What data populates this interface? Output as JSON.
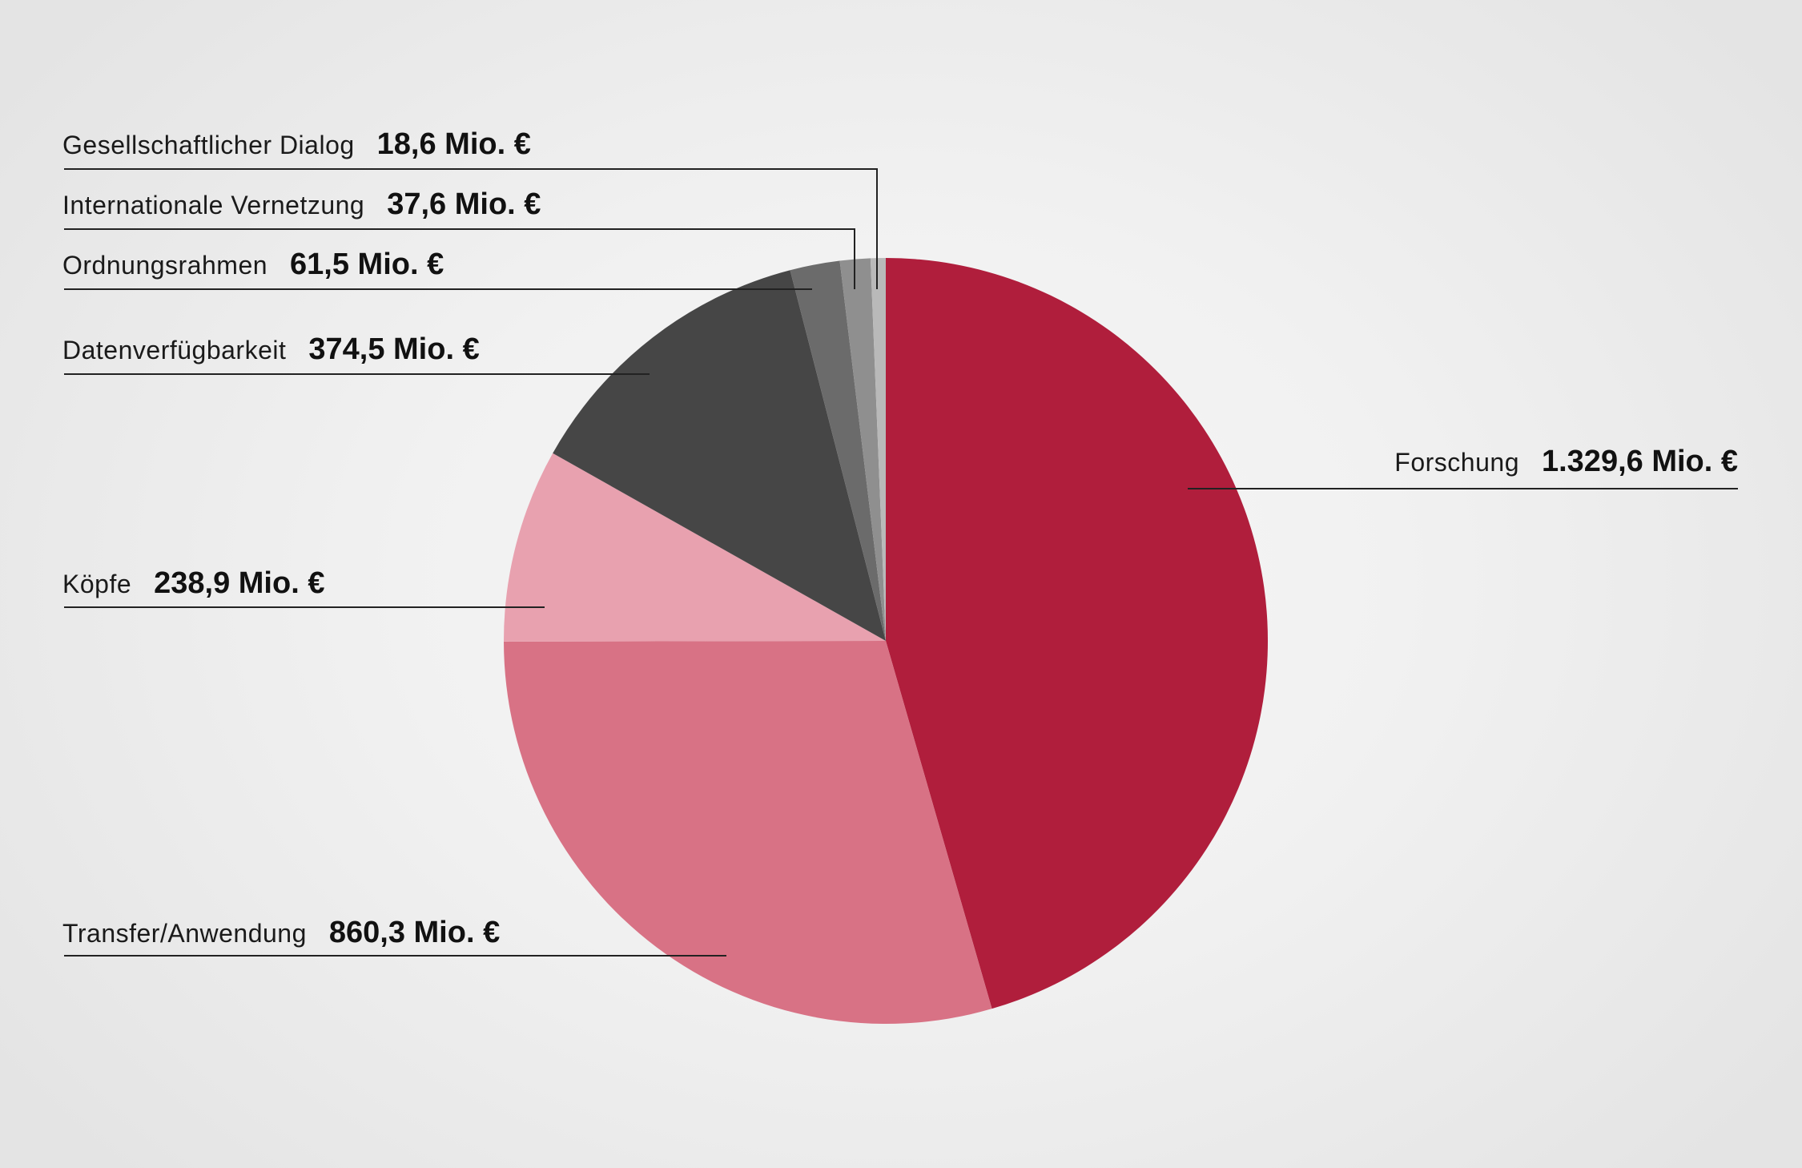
{
  "chart_data": {
    "type": "pie",
    "title": "",
    "unit": "Mio. €",
    "slices": [
      {
        "label": "Forschung",
        "value_text": "1.329,6 Mio. €",
        "value": 1329.6,
        "color": "#b01e3c"
      },
      {
        "label": "Transfer/Anwendung",
        "value_text": "860,3 Mio. €",
        "value": 860.3,
        "color": "#d87285"
      },
      {
        "label": "Köpfe",
        "value_text": "238,9 Mio. €",
        "value": 238.9,
        "color": "#e8a1af"
      },
      {
        "label": "Datenverfügbarkeit",
        "value_text": "374,5 Mio. €",
        "value": 374.5,
        "color": "#464646"
      },
      {
        "label": "Ordnungsrahmen",
        "value_text": "61,5 Mio. €",
        "value": 61.5,
        "color": "#6b6b6b"
      },
      {
        "label": "Internationale Vernetzung",
        "value_text": "37,6 Mio. €",
        "value": 37.6,
        "color": "#8f8f8f"
      },
      {
        "label": "Gesellschaftlicher Dialog",
        "value_text": "18,6 Mio. €",
        "value": 18.6,
        "color": "#b9b9b9"
      }
    ]
  }
}
